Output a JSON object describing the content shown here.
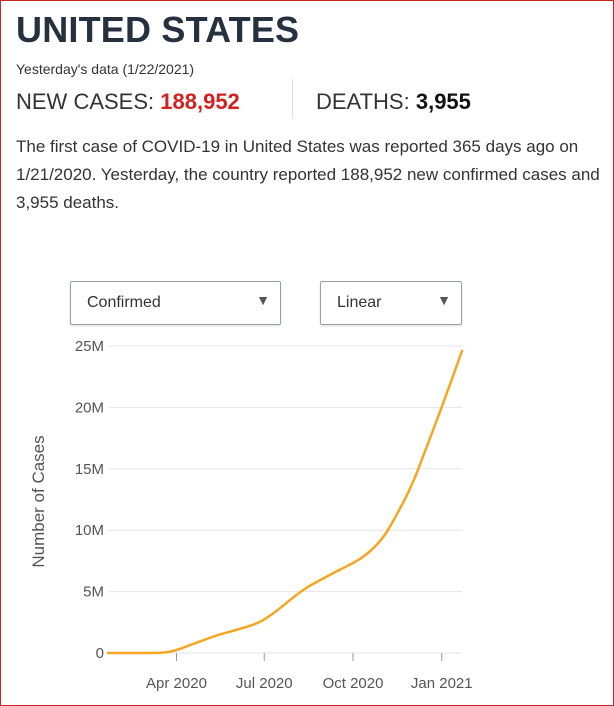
{
  "header": {
    "title": "UNITED STATES",
    "data_date": "Yesterday's data (1/22/2021)"
  },
  "stats": {
    "new_cases_label": "NEW CASES:",
    "new_cases_value": "188,952",
    "deaths_label": "DEATHS:",
    "deaths_value": "3,955"
  },
  "description": "The first case of COVID-19 in United States was reported 365 days ago on 1/21/2020. Yesterday, the country reported 188,952 new confirmed cases and 3,955 deaths.",
  "controls": {
    "metric_select": {
      "value": "Confirmed",
      "icon": "triangle-down-icon"
    },
    "scale_select": {
      "value": "Linear",
      "icon": "triangle-down-icon"
    }
  },
  "colors": {
    "title": "#25313f",
    "new_cases": "#d32020",
    "line": "#f5a623",
    "grid": "#e6e6e6",
    "border": "#c62828"
  },
  "chart_data": {
    "type": "line",
    "title": "",
    "xlabel": "",
    "ylabel": "Number of Cases",
    "ylim": [
      0,
      25000000
    ],
    "y_ticks": [
      0,
      5000000,
      10000000,
      15000000,
      20000000,
      25000000
    ],
    "y_tick_labels": [
      "0",
      "5M",
      "10M",
      "15M",
      "20M",
      "25M"
    ],
    "x_tick_labels": [
      "Apr 2020",
      "Jul 2020",
      "Oct 2020",
      "Jan 2021"
    ],
    "x_tick_dates": [
      "2020-04-01",
      "2020-07-01",
      "2020-10-01",
      "2021-01-01"
    ],
    "xlim": [
      "2020-01-21",
      "2021-01-22"
    ],
    "grid": true,
    "series": [
      {
        "name": "",
        "x": [
          "2020-01-21",
          "2020-02-15",
          "2020-03-01",
          "2020-03-20",
          "2020-04-01",
          "2020-04-15",
          "2020-05-01",
          "2020-05-15",
          "2020-06-01",
          "2020-06-20",
          "2020-07-01",
          "2020-07-15",
          "2020-08-01",
          "2020-08-15",
          "2020-09-01",
          "2020-09-15",
          "2020-10-01",
          "2020-10-15",
          "2020-11-01",
          "2020-11-15",
          "2020-12-01",
          "2020-12-15",
          "2021-01-01",
          "2021-01-22"
        ],
        "values": [
          0,
          20,
          100,
          20000,
          220000,
          650000,
          1100000,
          1500000,
          1850000,
          2300000,
          2700000,
          3500000,
          4600000,
          5400000,
          6100000,
          6700000,
          7300000,
          8000000,
          9300000,
          11200000,
          13600000,
          16500000,
          20000000,
          24600000
        ]
      }
    ]
  }
}
